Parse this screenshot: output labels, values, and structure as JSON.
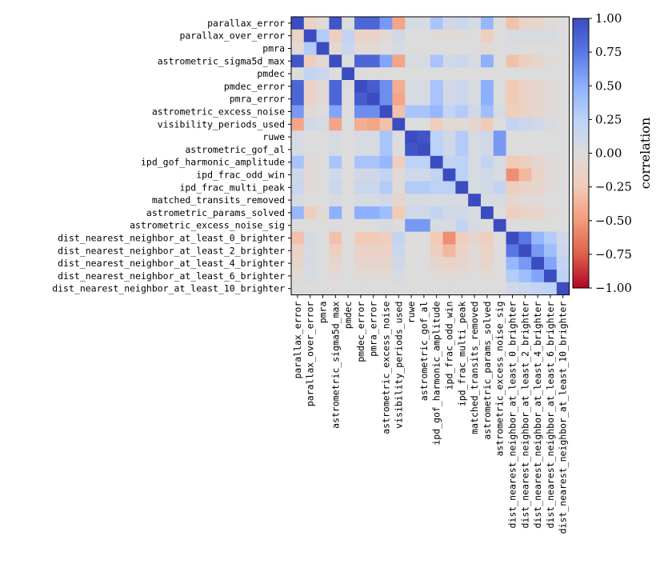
{
  "chart_data": {
    "type": "heatmap",
    "title": "",
    "colormap": "coolwarm",
    "vmin": -1.0,
    "vmax": 1.0,
    "colorbar": {
      "label": "correlation",
      "ticks": [
        1.0,
        0.75,
        0.5,
        0.25,
        0.0,
        -0.25,
        -0.5,
        -0.75,
        -1.0
      ],
      "tick_labels": [
        "1.00",
        "0.75",
        "0.50",
        "0.25",
        "0.00",
        "−0.25",
        "−0.50",
        "−0.75",
        "−1.00"
      ]
    },
    "labels": [
      "parallax_error",
      "parallax_over_error",
      "pmra",
      "astrometric_sigma5d_max",
      "pmdec",
      "pmdec_error",
      "pmra_error",
      "astrometric_excess_noise",
      "visibility_periods_used",
      "ruwe",
      "astrometric_gof_al",
      "ipd_gof_harmonic_amplitude",
      "ipd_frac_odd_win",
      "ipd_frac_multi_peak",
      "matched_transits_removed",
      "astrometric_params_solved",
      "astrometric_excess_noise_sig",
      "dist_nearest_neighbor_at_least_0_brighter",
      "dist_nearest_neighbor_at_least_2_brighter",
      "dist_nearest_neighbor_at_least_4_brighter",
      "dist_nearest_neighbor_at_least_6_brighter",
      "dist_nearest_neighbor_at_least_10_brighter"
    ],
    "matrix": [
      [
        1.0,
        -0.15,
        -0.05,
        0.95,
        0.0,
        0.85,
        0.85,
        0.6,
        -0.45,
        0.05,
        0.05,
        0.35,
        0.1,
        0.15,
        0.05,
        0.45,
        0.0,
        -0.3,
        -0.15,
        -0.1,
        -0.05,
        0.0
      ],
      [
        -0.15,
        1.0,
        0.3,
        -0.2,
        0.2,
        -0.15,
        -0.15,
        -0.05,
        0.1,
        0.0,
        0.0,
        -0.05,
        -0.05,
        -0.05,
        0.0,
        -0.2,
        0.0,
        0.05,
        0.05,
        0.05,
        0.05,
        0.0
      ],
      [
        -0.05,
        0.3,
        1.0,
        -0.05,
        0.15,
        -0.05,
        -0.05,
        0.0,
        0.05,
        0.0,
        0.0,
        0.0,
        0.0,
        0.0,
        0.0,
        -0.05,
        0.0,
        0.0,
        0.0,
        0.0,
        0.0,
        0.0
      ],
      [
        0.95,
        -0.2,
        -0.05,
        1.0,
        0.0,
        0.85,
        0.85,
        0.55,
        -0.45,
        0.05,
        0.05,
        0.35,
        0.1,
        0.15,
        0.05,
        0.5,
        0.0,
        -0.3,
        -0.2,
        -0.1,
        -0.05,
        0.0
      ],
      [
        0.0,
        0.2,
        0.15,
        0.0,
        1.0,
        0.0,
        0.0,
        0.0,
        0.0,
        0.0,
        0.0,
        0.0,
        0.0,
        0.0,
        0.0,
        0.0,
        0.0,
        0.0,
        0.0,
        0.0,
        0.0,
        0.0
      ],
      [
        0.85,
        -0.15,
        -0.05,
        0.85,
        0.0,
        1.0,
        0.9,
        0.65,
        -0.4,
        0.05,
        0.05,
        0.35,
        0.1,
        0.15,
        0.05,
        0.5,
        0.0,
        -0.25,
        -0.15,
        -0.1,
        -0.05,
        0.0
      ],
      [
        0.85,
        -0.15,
        -0.05,
        0.85,
        0.0,
        0.9,
        1.0,
        0.65,
        -0.45,
        0.05,
        0.05,
        0.35,
        0.1,
        0.15,
        0.05,
        0.5,
        0.0,
        -0.25,
        -0.15,
        -0.1,
        -0.05,
        0.0
      ],
      [
        0.6,
        -0.05,
        0.0,
        0.55,
        0.0,
        0.65,
        0.65,
        1.0,
        -0.3,
        0.35,
        0.35,
        0.45,
        0.2,
        0.3,
        0.1,
        0.4,
        0.05,
        -0.2,
        -0.15,
        -0.1,
        -0.05,
        0.0
      ],
      [
        -0.45,
        0.1,
        0.05,
        -0.45,
        0.0,
        -0.4,
        -0.45,
        -0.3,
        1.0,
        0.0,
        0.0,
        -0.2,
        -0.05,
        -0.05,
        -0.1,
        -0.25,
        0.0,
        0.2,
        0.15,
        0.1,
        0.05,
        0.0
      ],
      [
        0.05,
        0.0,
        0.0,
        0.05,
        0.0,
        0.05,
        0.05,
        0.35,
        0.0,
        1.0,
        0.95,
        0.25,
        0.1,
        0.3,
        0.05,
        0.1,
        0.6,
        0.0,
        0.0,
        0.0,
        0.0,
        0.0
      ],
      [
        0.05,
        0.0,
        0.0,
        0.05,
        0.0,
        0.05,
        0.05,
        0.35,
        0.0,
        0.95,
        1.0,
        0.25,
        0.1,
        0.3,
        0.05,
        0.1,
        0.6,
        0.0,
        0.0,
        0.0,
        0.0,
        0.0
      ],
      [
        0.35,
        -0.05,
        0.0,
        0.35,
        0.0,
        0.35,
        0.35,
        0.45,
        -0.2,
        0.25,
        0.25,
        1.0,
        0.2,
        0.25,
        0.05,
        0.2,
        0.05,
        -0.25,
        -0.2,
        -0.1,
        -0.05,
        0.0
      ],
      [
        0.1,
        -0.05,
        0.0,
        0.1,
        0.0,
        0.1,
        0.1,
        0.2,
        -0.05,
        0.1,
        0.1,
        0.2,
        1.0,
        0.25,
        0.05,
        0.1,
        0.05,
        -0.55,
        -0.35,
        -0.15,
        -0.05,
        0.0
      ],
      [
        0.15,
        -0.05,
        0.0,
        0.15,
        0.0,
        0.15,
        0.15,
        0.3,
        -0.05,
        0.3,
        0.3,
        0.25,
        0.25,
        1.0,
        0.05,
        0.1,
        0.2,
        -0.2,
        -0.15,
        -0.1,
        -0.05,
        0.0
      ],
      [
        0.05,
        0.0,
        0.0,
        0.05,
        0.0,
        0.05,
        0.05,
        0.1,
        -0.1,
        0.05,
        0.05,
        0.05,
        0.05,
        0.05,
        1.0,
        0.05,
        0.05,
        -0.1,
        -0.05,
        -0.05,
        0.0,
        0.0
      ],
      [
        0.45,
        -0.2,
        -0.05,
        0.5,
        0.0,
        0.5,
        0.5,
        0.4,
        -0.25,
        0.1,
        0.1,
        0.2,
        0.1,
        0.1,
        0.05,
        1.0,
        0.0,
        -0.2,
        -0.15,
        -0.1,
        -0.05,
        0.0
      ],
      [
        0.0,
        0.0,
        0.0,
        0.0,
        0.0,
        0.0,
        0.0,
        0.05,
        0.0,
        0.6,
        0.6,
        0.05,
        0.05,
        0.2,
        0.05,
        0.0,
        1.0,
        0.0,
        0.0,
        0.0,
        0.0,
        0.0
      ],
      [
        -0.3,
        0.05,
        0.0,
        -0.3,
        0.0,
        -0.25,
        -0.25,
        -0.2,
        0.2,
        0.0,
        0.0,
        -0.25,
        -0.55,
        -0.2,
        -0.1,
        -0.2,
        0.0,
        1.0,
        0.75,
        0.45,
        0.3,
        0.1
      ],
      [
        -0.15,
        0.05,
        0.0,
        -0.2,
        0.0,
        -0.15,
        -0.15,
        -0.15,
        0.15,
        0.0,
        0.0,
        -0.2,
        -0.35,
        -0.15,
        -0.05,
        -0.15,
        0.0,
        0.75,
        1.0,
        0.6,
        0.4,
        0.15
      ],
      [
        -0.1,
        0.05,
        0.0,
        -0.1,
        0.0,
        -0.1,
        -0.1,
        -0.1,
        0.1,
        0.0,
        0.0,
        -0.1,
        -0.15,
        -0.1,
        -0.05,
        -0.1,
        0.0,
        0.45,
        0.6,
        1.0,
        0.55,
        0.2
      ],
      [
        -0.05,
        0.05,
        0.0,
        -0.05,
        0.0,
        -0.05,
        -0.05,
        -0.05,
        0.05,
        0.0,
        0.0,
        -0.05,
        -0.05,
        -0.05,
        0.0,
        -0.05,
        0.0,
        0.3,
        0.4,
        0.55,
        1.0,
        0.25
      ],
      [
        0.0,
        0.0,
        0.0,
        0.0,
        0.0,
        0.0,
        0.0,
        0.0,
        0.0,
        0.0,
        0.0,
        0.0,
        0.0,
        0.0,
        0.0,
        0.0,
        0.0,
        0.1,
        0.15,
        0.2,
        0.25,
        1.0
      ]
    ]
  }
}
